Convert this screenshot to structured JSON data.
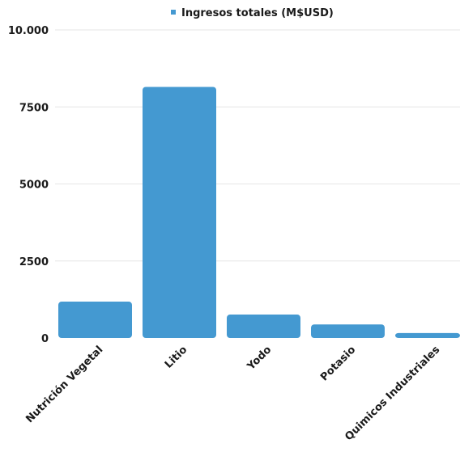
{
  "chart_data": {
    "type": "bar",
    "categories": [
      "Nutrición Vegetal",
      "Litio",
      "Yodo",
      "Potasio",
      "Quimicos Industriales"
    ],
    "series": [
      {
        "name": "Ingresos totales (M$USD)",
        "values": [
          1180,
          8150,
          760,
          440,
          160
        ]
      }
    ],
    "y_ticks": [
      {
        "value": 0,
        "label": "0"
      },
      {
        "value": 2500,
        "label": "2500"
      },
      {
        "value": 5000,
        "label": "5000"
      },
      {
        "value": 7500,
        "label": "7500"
      },
      {
        "value": 10000,
        "label": "10.000"
      }
    ],
    "ylim": [
      0,
      10000
    ],
    "grid": true,
    "legend_position": "top",
    "colors": {
      "bar": "#4499d1",
      "grid": "#e6e6e6",
      "text": "#1a1a1a"
    }
  }
}
